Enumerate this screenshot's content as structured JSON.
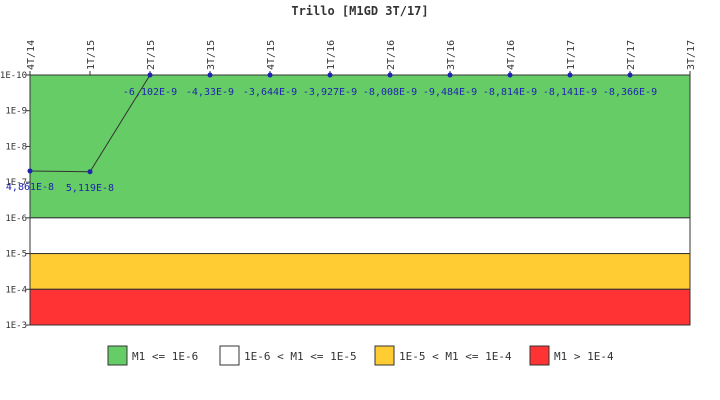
{
  "chart_data": {
    "type": "line",
    "title": "Trillo [M1GD 3T/17]",
    "xlabel": "",
    "ylabel": "",
    "scale": "log",
    "inverted_y": true,
    "yticks": [
      "1E-10",
      "1E-9",
      "1E-8",
      "1E-7",
      "1E-6",
      "1E-5",
      "1E-4",
      "1E-3"
    ],
    "ytick_values": [
      1e-10,
      1e-09,
      1e-08,
      1e-07,
      1e-06,
      1e-05,
      0.0001,
      0.001
    ],
    "ylim": [
      1e-10,
      0.001
    ],
    "categories": [
      "4T/14",
      "1T/15",
      "2T/15",
      "3T/15",
      "4T/15",
      "1T/16",
      "2T/16",
      "3T/16",
      "4T/16",
      "1T/17",
      "2T/17",
      "3T/17"
    ],
    "series": [
      {
        "values": [
          4.861e-08,
          5.119e-08,
          -6.102e-09,
          -4.33e-09,
          -3.644e-09,
          -3.927e-09,
          -8.008e-09,
          -9.484e-09,
          -8.814e-09,
          -8.141e-09,
          -8.366e-09,
          null
        ],
        "labels": [
          "4,861E-8",
          "5,119E-8",
          "-6,102E-9",
          "-4,33E-9",
          "-3,644E-9",
          "-3,927E-9",
          "-8,008E-9",
          "-9,484E-9",
          "-8,814E-9",
          "-8,141E-9",
          "-8,366E-9",
          ""
        ]
      }
    ],
    "bands": [
      {
        "from": 1e-10,
        "to": 1e-06,
        "color": "#66cc66",
        "label": "M1 <= 1E-6"
      },
      {
        "from": 1e-06,
        "to": 1e-05,
        "color": "#ffffff",
        "label": "1E-6 < M1 <= 1E-5"
      },
      {
        "from": 1e-05,
        "to": 0.0001,
        "color": "#ffcc33",
        "label": "1E-5 < M1 <= 1E-4"
      },
      {
        "from": 0.0001,
        "to": 0.001,
        "color": "#ff3333",
        "label": "M1 > 1E-4"
      }
    ],
    "legend": "bottom",
    "grid": false
  }
}
